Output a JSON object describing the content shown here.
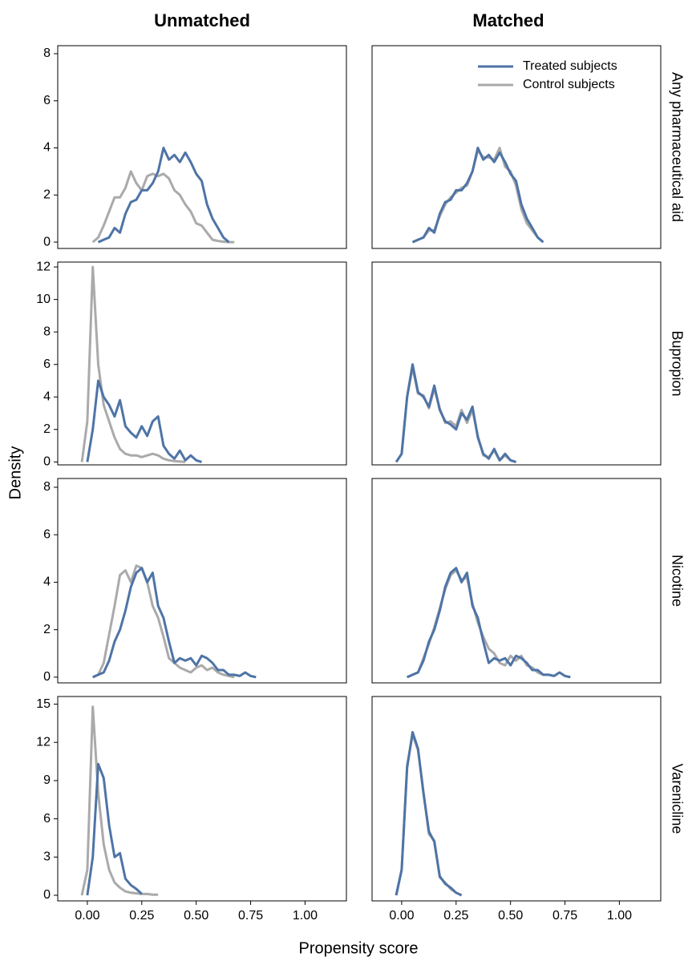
{
  "chart_data": {
    "type": "line",
    "columns": [
      "Unmatched",
      "Matched"
    ],
    "x_label": "Propensity score",
    "y_label": "Density",
    "xlim": [
      -0.136,
      1.19
    ],
    "xticks": [
      {
        "value": 0,
        "label": "0.00"
      },
      {
        "value": 0.25,
        "label": "0.25"
      },
      {
        "value": 0.5,
        "label": "0.50"
      },
      {
        "value": 0.75,
        "label": "0.75"
      },
      {
        "value": 1,
        "label": "1.00"
      }
    ],
    "legend_position": "top-right",
    "series": [
      {
        "name": "Treated subjects",
        "color": "#4e74a6"
      },
      {
        "name": "Control subjects",
        "color": "#aaaaaa"
      }
    ],
    "rows": [
      {
        "label": "Any pharmaceutical aid",
        "ylim": [
          -0.27,
          8.34
        ],
        "yticks": [
          0,
          2,
          4,
          6,
          8
        ],
        "x": [
          0.025,
          0.05,
          0.075,
          0.1,
          0.125,
          0.15,
          0.175,
          0.2,
          0.225,
          0.25,
          0.275,
          0.3,
          0.325,
          0.35,
          0.375,
          0.4,
          0.425,
          0.45,
          0.475,
          0.5,
          0.525,
          0.55,
          0.575,
          0.6,
          0.625,
          0.65,
          0.675
        ],
        "panels": [
          {
            "values": [
              [
                null,
                0,
                0.1,
                0.2,
                0.6,
                0.4,
                1.2,
                1.7,
                1.8,
                2.2,
                2.2,
                2.5,
                3.0,
                4.0,
                3.5,
                3.7,
                3.4,
                3.8,
                3.4,
                2.9,
                2.6,
                1.6,
                1.0,
                0.6,
                0.2,
                0,
                null
              ],
              [
                0,
                0.2,
                0.7,
                1.3,
                1.9,
                1.9,
                2.3,
                3.0,
                2.5,
                2.2,
                2.8,
                2.9,
                2.8,
                2.9,
                2.7,
                2.2,
                2.0,
                1.6,
                1.3,
                0.8,
                0.7,
                0.4,
                0.1,
                0.05,
                0.02,
                0,
                0
              ]
            ]
          },
          {
            "values": [
              [
                null,
                0,
                0.1,
                0.2,
                0.6,
                0.4,
                1.2,
                1.7,
                1.8,
                2.2,
                2.2,
                2.5,
                3.0,
                4.0,
                3.5,
                3.7,
                3.4,
                3.8,
                3.4,
                2.9,
                2.6,
                1.6,
                1.0,
                0.6,
                0.2,
                0,
                null
              ],
              [
                null,
                0,
                0.1,
                0.2,
                0.5,
                0.5,
                1.1,
                1.6,
                1.9,
                2.1,
                2.3,
                2.4,
                3.0,
                3.9,
                3.6,
                3.6,
                3.5,
                4.0,
                3.2,
                3.0,
                2.4,
                1.4,
                0.8,
                0.5,
                0.2,
                0,
                null
              ]
            ]
          }
        ]
      },
      {
        "label": "Bupropion",
        "ylim": [
          -0.18,
          12.3
        ],
        "yticks": [
          0,
          2,
          4,
          6,
          8,
          10,
          12
        ],
        "x": [
          -0.025,
          0,
          0.025,
          0.05,
          0.075,
          0.1,
          0.125,
          0.15,
          0.175,
          0.2,
          0.225,
          0.25,
          0.275,
          0.3,
          0.325,
          0.35,
          0.375,
          0.4,
          0.425,
          0.45,
          0.475,
          0.5,
          0.525
        ],
        "panels": [
          {
            "values": [
              [
                null,
                0,
                2,
                5,
                4,
                3.5,
                2.8,
                3.8,
                2.2,
                1.8,
                1.5,
                2.2,
                1.6,
                2.5,
                2.8,
                1.0,
                0.5,
                0.2,
                0.7,
                0.1,
                0.4,
                0.1,
                0
              ],
              [
                0,
                2.5,
                12,
                6,
                3.5,
                2.5,
                1.5,
                0.8,
                0.5,
                0.4,
                0.4,
                0.3,
                0.4,
                0.5,
                0.4,
                0.2,
                0.1,
                0.05,
                0.02,
                0,
                null,
                null,
                null
              ]
            ]
          },
          {
            "values": [
              [
                0,
                0.5,
                4,
                6,
                4.3,
                4.0,
                3.4,
                4.7,
                3.2,
                2.5,
                2.3,
                2.0,
                3.0,
                2.6,
                3.4,
                1.5,
                0.5,
                0.2,
                0.8,
                0.1,
                0.5,
                0.1,
                0
              ],
              [
                0,
                0.5,
                4,
                5.8,
                4.2,
                4.1,
                3.3,
                4.5,
                3.3,
                2.4,
                2.5,
                2.2,
                3.2,
                2.4,
                3.2,
                1.6,
                0.4,
                0.3,
                0.7,
                0.1,
                0.4,
                0.1,
                0
              ]
            ]
          }
        ]
      },
      {
        "label": "Nicotine",
        "ylim": [
          -0.24,
          8.37
        ],
        "yticks": [
          0,
          2,
          4,
          6,
          8
        ],
        "x": [
          0.025,
          0.05,
          0.075,
          0.1,
          0.125,
          0.15,
          0.175,
          0.2,
          0.225,
          0.25,
          0.275,
          0.3,
          0.325,
          0.35,
          0.375,
          0.4,
          0.425,
          0.45,
          0.475,
          0.5,
          0.525,
          0.55,
          0.575,
          0.6,
          0.625,
          0.65,
          0.675,
          0.7,
          0.725,
          0.75,
          0.775
        ],
        "panels": [
          {
            "values": [
              [
                0,
                0.1,
                0.2,
                0.7,
                1.5,
                2.0,
                2.8,
                3.8,
                4.4,
                4.6,
                4.0,
                4.4,
                3.0,
                2.5,
                1.5,
                0.6,
                0.8,
                0.7,
                0.8,
                0.5,
                0.9,
                0.8,
                0.6,
                0.3,
                0.3,
                0.1,
                0.1,
                0.05,
                0.2,
                0.05,
                0
              ],
              [
                0,
                0.1,
                0.6,
                1.8,
                3.0,
                4.3,
                4.5,
                4.0,
                4.7,
                4.6,
                4.0,
                3.0,
                2.5,
                1.7,
                0.8,
                0.6,
                0.4,
                0.3,
                0.2,
                0.4,
                0.5,
                0.3,
                0.4,
                0.2,
                0.1,
                0.05,
                0,
                null,
                null,
                null,
                null
              ]
            ]
          },
          {
            "values": [
              [
                0,
                0.1,
                0.2,
                0.7,
                1.5,
                2.0,
                2.8,
                3.8,
                4.4,
                4.6,
                4.0,
                4.4,
                3.0,
                2.5,
                1.5,
                0.6,
                0.8,
                0.7,
                0.8,
                0.5,
                0.9,
                0.8,
                0.6,
                0.3,
                0.3,
                0.1,
                0.1,
                0.05,
                0.2,
                0.05,
                0
              ],
              [
                0,
                0.1,
                0.2,
                0.8,
                1.4,
                2.1,
                2.9,
                3.7,
                4.3,
                4.5,
                4.1,
                4.2,
                3.1,
                2.3,
                1.7,
                1.2,
                1.0,
                0.6,
                0.5,
                0.9,
                0.7,
                0.9,
                0.5,
                0.4,
                0.2,
                0.1,
                0.1,
                null,
                null,
                null,
                null
              ]
            ]
          }
        ]
      },
      {
        "label": "Varenicline",
        "ylim": [
          -0.44,
          15.6
        ],
        "yticks": [
          0,
          3,
          6,
          9,
          12,
          15
        ],
        "x": [
          -0.025,
          0,
          0.025,
          0.05,
          0.075,
          0.1,
          0.125,
          0.15,
          0.175,
          0.2,
          0.225,
          0.25,
          0.275,
          0.3,
          0.325
        ],
        "panels": [
          {
            "values": [
              [
                null,
                0,
                3,
                10.3,
                9.2,
                5.5,
                3,
                3.3,
                1.3,
                0.8,
                0.5,
                0.1,
                null,
                null,
                null
              ],
              [
                0,
                2,
                14.8,
                8,
                4,
                2,
                1,
                0.6,
                0.3,
                0.2,
                0.15,
                0.1,
                0.1,
                0.05,
                0.05
              ]
            ]
          },
          {
            "values": [
              [
                0,
                2,
                10,
                12.8,
                11.5,
                8,
                5,
                4.2,
                1.5,
                0.9,
                0.6,
                0.2,
                0,
                null,
                null
              ],
              [
                0,
                2,
                10.2,
                12.6,
                11.4,
                8.1,
                4.8,
                4.3,
                1.4,
                1.0,
                0.5,
                0.2,
                0,
                null,
                null
              ]
            ]
          }
        ]
      }
    ]
  }
}
